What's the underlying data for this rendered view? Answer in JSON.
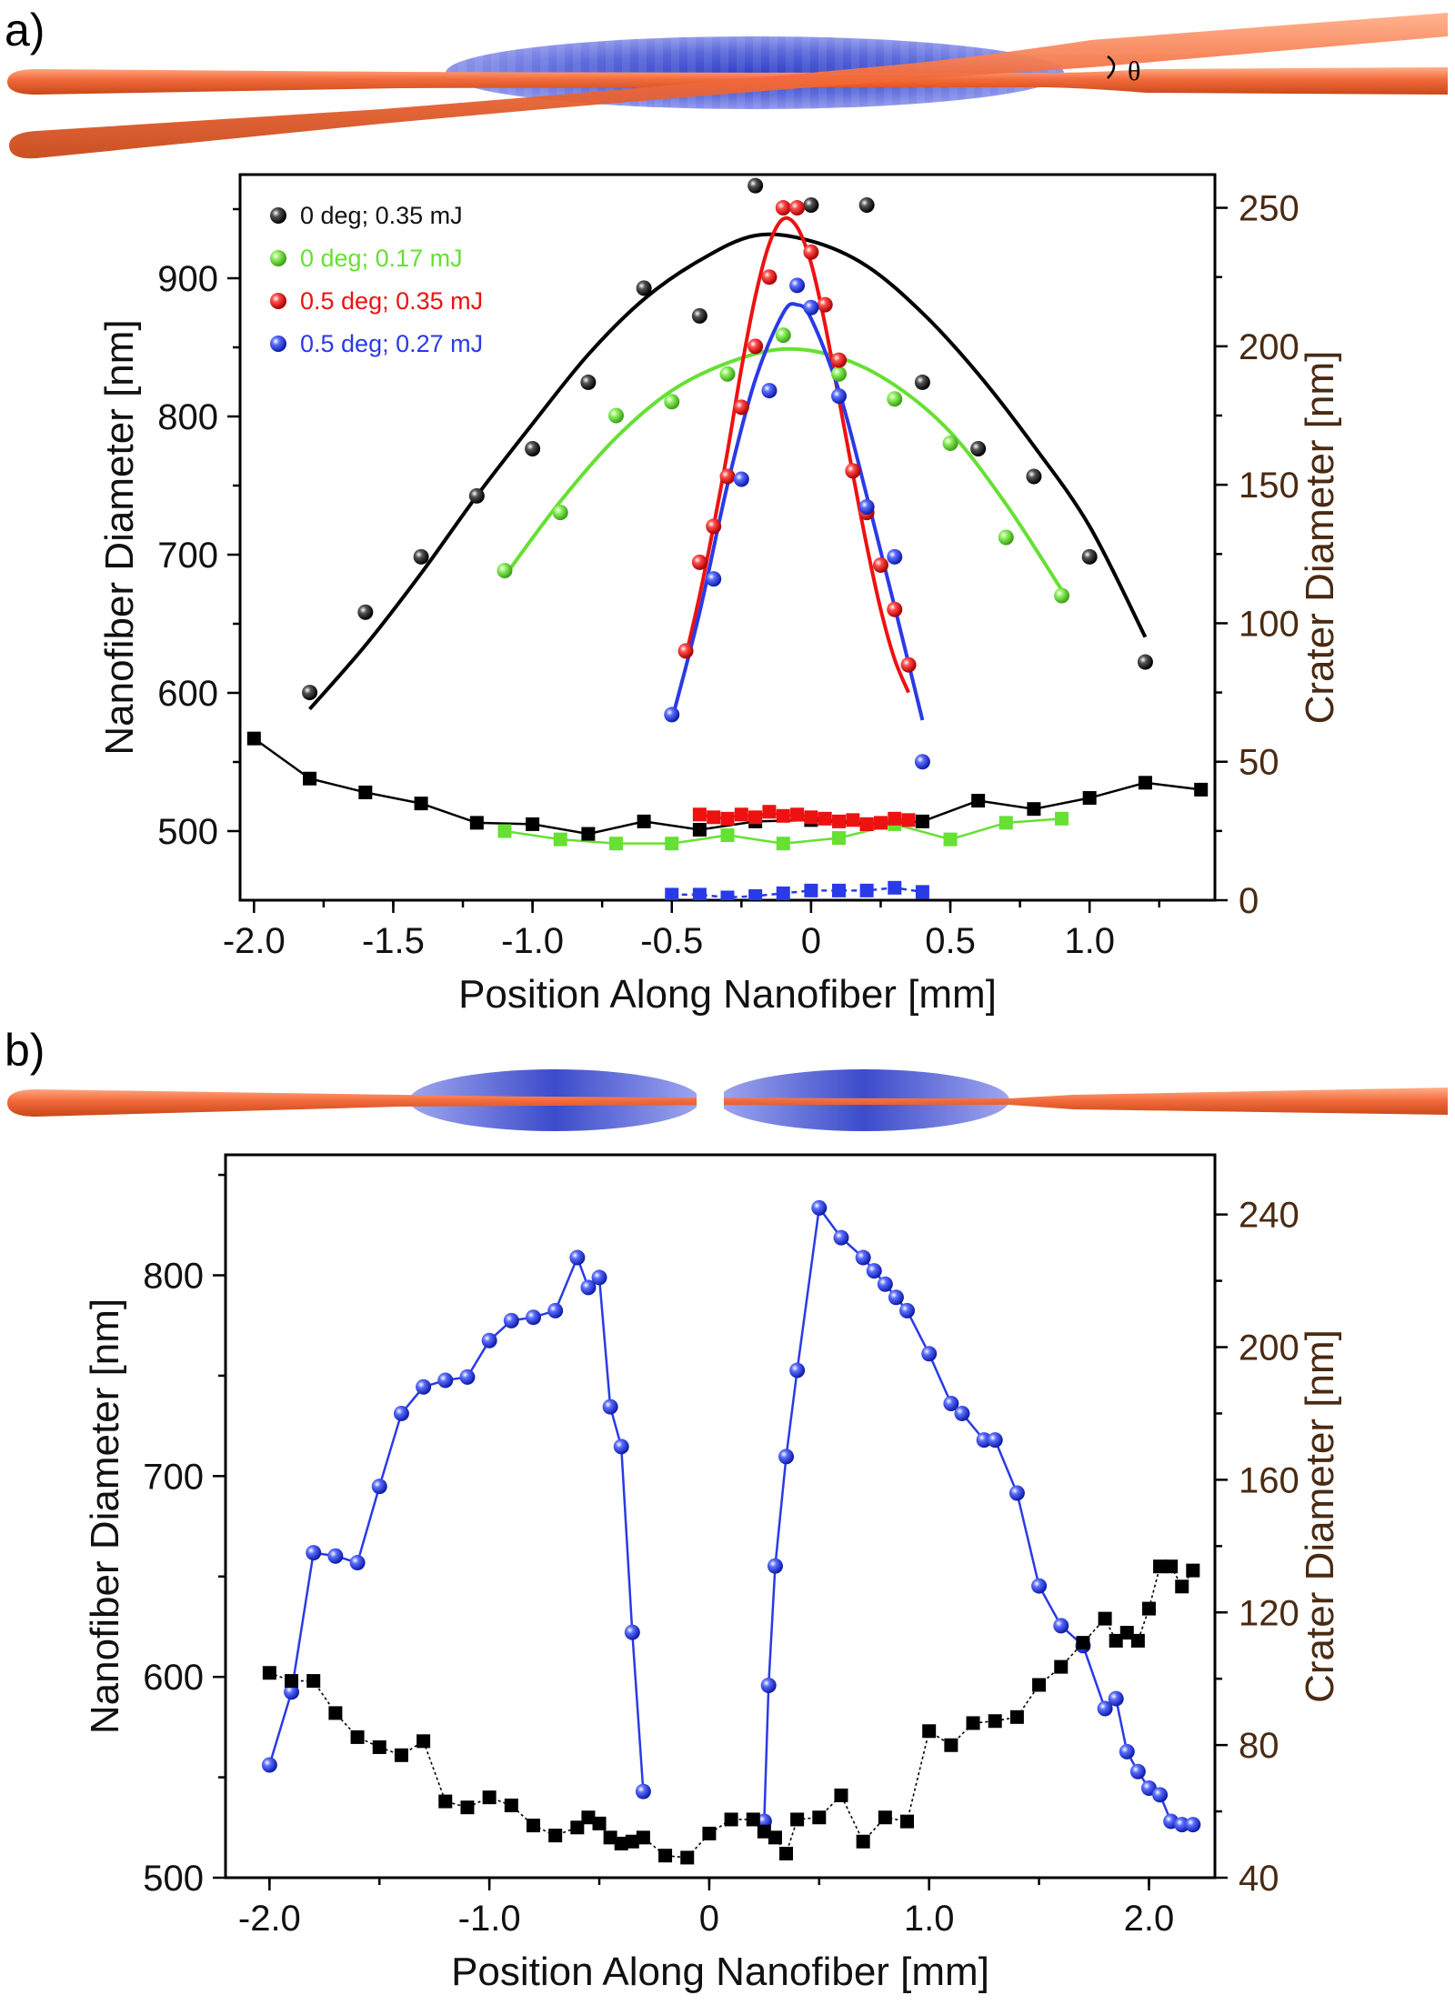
{
  "colors": {
    "black": "#000000",
    "green": "#66e033",
    "red": "#ee1111",
    "blue": "#2a3ae6",
    "right_axis": "#4a2a12",
    "fiber": "#f06a3a",
    "beam": "#4b5ad8"
  },
  "chart_data": [
    {
      "panel_label": "a)",
      "type": "scatter",
      "schematic": {
        "angle_symbol": "θ"
      },
      "xlabel": "Position Along Nanofiber [mm]",
      "ylabel": "Nanofiber Diameter [nm]",
      "y2label": "Crater Diameter [nm]",
      "xlim": [
        -2.05,
        1.45
      ],
      "ylim": [
        450,
        975
      ],
      "y2lim": [
        0,
        262
      ],
      "x_ticks": [
        -2.0,
        -1.5,
        -1.0,
        -0.5,
        0,
        0.5,
        1.0
      ],
      "x_tick_labels": [
        "-2.0",
        "-1.5",
        "-1.0",
        "-0.5",
        "0",
        "0.5",
        "1.0"
      ],
      "y_ticks": [
        500,
        600,
        700,
        800,
        900
      ],
      "y_tick_labels": [
        "500",
        "600",
        "700",
        "800",
        "900"
      ],
      "y2_ticks": [
        0,
        50,
        100,
        150,
        200,
        250
      ],
      "y2_tick_labels": [
        "0",
        "50",
        "100",
        "150",
        "200",
        "250"
      ],
      "legend": [
        {
          "label": "0 deg; 0.35 mJ",
          "color": "#000000"
        },
        {
          "label": "0 deg; 0.17 mJ",
          "color": "#66e033"
        },
        {
          "label": "0.5 deg; 0.35 mJ",
          "color": "#ee1111"
        },
        {
          "label": "0.5 deg; 0.27 mJ",
          "color": "#2a3ae6"
        }
      ],
      "series": [
        {
          "name": "0 deg; 0.35 mJ crater",
          "axis": "right",
          "marker": "sphere",
          "color": "#000000",
          "x": [
            -1.8,
            -1.6,
            -1.4,
            -1.2,
            -1.0,
            -0.8,
            -0.6,
            -0.4,
            -0.2,
            0.0,
            0.2,
            0.4,
            0.6,
            0.8,
            1.0,
            1.2
          ],
          "y": [
            75,
            104,
            124,
            146,
            163,
            187,
            221,
            211,
            258,
            251,
            251,
            187,
            163,
            153,
            124,
            86
          ]
        },
        {
          "name": "0 deg; 0.35 mJ fit",
          "axis": "right",
          "line": "fit",
          "color": "#000000",
          "x": [
            -1.8,
            -1.6,
            -1.4,
            -1.2,
            -1.0,
            -0.8,
            -0.6,
            -0.4,
            -0.2,
            0.0,
            0.2,
            0.4,
            0.6,
            0.8,
            1.0,
            1.2
          ],
          "y": [
            69,
            92,
            118,
            146,
            172,
            197,
            217,
            231,
            240,
            238,
            229,
            212,
            190,
            164,
            135,
            95
          ]
        },
        {
          "name": "0 deg; 0.17 mJ crater",
          "axis": "right",
          "marker": "sphere",
          "color": "#66e033",
          "x": [
            -1.1,
            -0.9,
            -0.7,
            -0.5,
            -0.3,
            -0.1,
            0.1,
            0.3,
            0.5,
            0.7,
            0.9
          ],
          "y": [
            119,
            140,
            175,
            180,
            190,
            204,
            190,
            181,
            165,
            131,
            110
          ]
        },
        {
          "name": "0 deg; 0.17 mJ fit",
          "axis": "right",
          "line": "fit",
          "color": "#66e033",
          "x": [
            -1.1,
            -0.9,
            -0.7,
            -0.5,
            -0.3,
            -0.1,
            0.1,
            0.3,
            0.5,
            0.7,
            0.9
          ],
          "y": [
            117,
            144,
            167,
            184,
            194,
            199,
            196,
            186,
            169,
            143,
            112
          ]
        },
        {
          "name": "0.5 deg; 0.35 mJ crater",
          "axis": "right",
          "marker": "sphere",
          "color": "#ee1111",
          "x": [
            -0.45,
            -0.4,
            -0.35,
            -0.3,
            -0.25,
            -0.2,
            -0.15,
            -0.1,
            -0.05,
            0.0,
            0.05,
            0.1,
            0.15,
            0.2,
            0.25,
            0.3,
            0.35
          ],
          "y": [
            90,
            122,
            135,
            153,
            178,
            200,
            225,
            250,
            250,
            234,
            215,
            195,
            155,
            140,
            121,
            105,
            85
          ]
        },
        {
          "name": "0.5 deg; 0.35 mJ fit",
          "axis": "right",
          "line": "fit",
          "color": "#ee1111",
          "x": [
            -0.45,
            -0.4,
            -0.35,
            -0.3,
            -0.25,
            -0.2,
            -0.15,
            -0.1,
            -0.05,
            0.0,
            0.05,
            0.1,
            0.15,
            0.2,
            0.25,
            0.3,
            0.35
          ],
          "y": [
            88,
            110,
            135,
            162,
            192,
            218,
            237,
            246,
            243,
            230,
            208,
            181,
            154,
            128,
            105,
            87,
            75
          ]
        },
        {
          "name": "0.5 deg; 0.27 mJ crater",
          "axis": "right",
          "marker": "sphere",
          "color": "#2a3ae6",
          "x": [
            -0.5,
            -0.35,
            -0.25,
            -0.15,
            -0.05,
            0.0,
            0.1,
            0.2,
            0.3,
            0.4
          ],
          "y": [
            67,
            116,
            152,
            184,
            222,
            214,
            182,
            142,
            124,
            50
          ]
        },
        {
          "name": "0.5 deg; 0.27 mJ fit",
          "axis": "right",
          "line": "fit",
          "color": "#2a3ae6",
          "x": [
            -0.5,
            -0.4,
            -0.3,
            -0.2,
            -0.1,
            -0.05,
            0.0,
            0.1,
            0.2,
            0.3,
            0.4
          ],
          "y": [
            65,
            104,
            150,
            188,
            212,
            215,
            210,
            184,
            146,
            106,
            65
          ]
        },
        {
          "name": "0 deg; 0.35 mJ fiber",
          "axis": "left",
          "marker": "square",
          "connect": "solid",
          "color": "#000000",
          "x": [
            -2.0,
            -1.8,
            -1.6,
            -1.4,
            -1.2,
            -1.0,
            -0.8,
            -0.6,
            -0.4,
            -0.2,
            0.0,
            0.2,
            0.4,
            0.6,
            0.8,
            1.0,
            1.2,
            1.4
          ],
          "y": [
            567,
            538,
            528,
            520,
            506,
            505,
            498,
            507,
            501,
            507,
            508,
            505,
            507,
            522,
            516,
            524,
            535,
            530
          ]
        },
        {
          "name": "0 deg; 0.17 mJ fiber",
          "axis": "left",
          "marker": "square",
          "connect": "solid",
          "color": "#66e033",
          "x": [
            -1.1,
            -0.9,
            -0.7,
            -0.5,
            -0.3,
            -0.1,
            0.1,
            0.3,
            0.5,
            0.7,
            0.9
          ],
          "y": [
            500,
            494,
            491,
            491,
            497,
            491,
            495,
            505,
            494,
            506,
            509
          ]
        },
        {
          "name": "0.5 deg; 0.35 mJ fiber",
          "axis": "left",
          "marker": "square",
          "connect": "solid",
          "color": "#ee1111",
          "x": [
            -0.4,
            -0.35,
            -0.3,
            -0.25,
            -0.2,
            -0.15,
            -0.1,
            -0.05,
            0.0,
            0.05,
            0.1,
            0.15,
            0.2,
            0.25,
            0.3,
            0.35
          ],
          "y": [
            512,
            510,
            509,
            512,
            510,
            514,
            511,
            512,
            510,
            509,
            507,
            508,
            505,
            506,
            509,
            508
          ]
        },
        {
          "name": "0.5 deg; 0.27 mJ fiber",
          "axis": "left",
          "marker": "square",
          "connect": "dashed",
          "color": "#2a3ae6",
          "x": [
            -0.5,
            -0.4,
            -0.3,
            -0.2,
            -0.1,
            0.0,
            0.1,
            0.2,
            0.3,
            0.4
          ],
          "y": [
            454,
            454,
            452,
            453,
            455,
            457,
            457,
            457,
            459,
            456
          ]
        }
      ]
    },
    {
      "panel_label": "b)",
      "type": "scatter",
      "xlabel": "Position Along Nanofiber [mm]",
      "ylabel": "Nanofiber Diameter [nm]",
      "y2label": "Crater Diameter [nm]",
      "xlim": [
        -2.2,
        2.3
      ],
      "ylim": [
        500,
        860
      ],
      "y2lim": [
        40,
        258
      ],
      "x_ticks": [
        -2.0,
        -1.0,
        0,
        1.0,
        2.0
      ],
      "x_tick_labels": [
        "-2.0",
        "-1.0",
        "0",
        "1.0",
        "2.0"
      ],
      "y_ticks": [
        500,
        600,
        700,
        800
      ],
      "y_tick_labels": [
        "500",
        "600",
        "700",
        "800"
      ],
      "y2_ticks": [
        40,
        80,
        120,
        160,
        200,
        240
      ],
      "y2_tick_labels": [
        "40",
        "80",
        "120",
        "160",
        "200",
        "240"
      ],
      "series": [
        {
          "name": "crater left branch",
          "axis": "right",
          "marker": "sphere",
          "connect": "solid",
          "color": "#2a3ae6",
          "x": [
            -2.0,
            -1.9,
            -1.8,
            -1.7,
            -1.6,
            -1.5,
            -1.4,
            -1.3,
            -1.2,
            -1.1,
            -1.0,
            -0.9,
            -0.8,
            -0.7,
            -0.6,
            -0.55,
            -0.5,
            -0.45,
            -0.4,
            -0.35,
            -0.3
          ],
          "y": [
            74,
            96,
            138,
            137,
            135,
            158,
            180,
            188,
            190,
            191,
            202,
            208,
            209,
            211,
            227,
            218,
            221,
            182,
            170,
            114,
            66
          ]
        },
        {
          "name": "crater right branch",
          "axis": "right",
          "marker": "sphere",
          "connect": "solid",
          "color": "#2a3ae6",
          "x": [
            0.25,
            0.27,
            0.3,
            0.35,
            0.4,
            0.5,
            0.6,
            0.7,
            0.75,
            0.8,
            0.85,
            0.9,
            1.0,
            1.1,
            1.15,
            1.25,
            1.3,
            1.4,
            1.5,
            1.6,
            1.7,
            1.8,
            1.85,
            1.9,
            1.95,
            2.0,
            2.05,
            2.1,
            2.15,
            2.2
          ],
          "y": [
            57,
            98,
            134,
            167,
            193,
            242,
            233,
            227,
            223,
            219,
            215,
            211,
            198,
            183,
            180,
            172,
            172,
            156,
            128,
            116,
            110,
            91,
            94,
            78,
            72,
            67,
            65,
            57,
            56,
            56
          ]
        },
        {
          "name": "nanofiber diameter",
          "axis": "left",
          "marker": "square",
          "connect": "dotted",
          "color": "#000000",
          "x": [
            -2.0,
            -1.9,
            -1.8,
            -1.7,
            -1.6,
            -1.5,
            -1.4,
            -1.3,
            -1.2,
            -1.1,
            -1.0,
            -0.9,
            -0.8,
            -0.7,
            -0.6,
            -0.55,
            -0.5,
            -0.45,
            -0.4,
            -0.35,
            -0.3,
            -0.2,
            -0.1,
            0.0,
            0.1,
            0.2,
            0.25,
            0.3,
            0.35,
            0.4,
            0.5,
            0.6,
            0.7,
            0.8,
            0.9,
            1.0,
            1.1,
            1.2,
            1.3,
            1.4,
            1.5,
            1.6,
            1.7,
            1.8,
            1.85,
            1.9,
            1.95,
            2.0,
            2.05,
            2.1,
            2.15,
            2.2
          ],
          "y": [
            602,
            598,
            598,
            582,
            570,
            565,
            561,
            568,
            538,
            535,
            540,
            536,
            526,
            521,
            525,
            530,
            527,
            520,
            517,
            518,
            520,
            511,
            510,
            522,
            529,
            529,
            523,
            520,
            512,
            529,
            530,
            541,
            518,
            530,
            528,
            573,
            566,
            577,
            578,
            580,
            596,
            605,
            617,
            629,
            618,
            622,
            618,
            634,
            655,
            655,
            645,
            653
          ]
        }
      ]
    }
  ]
}
